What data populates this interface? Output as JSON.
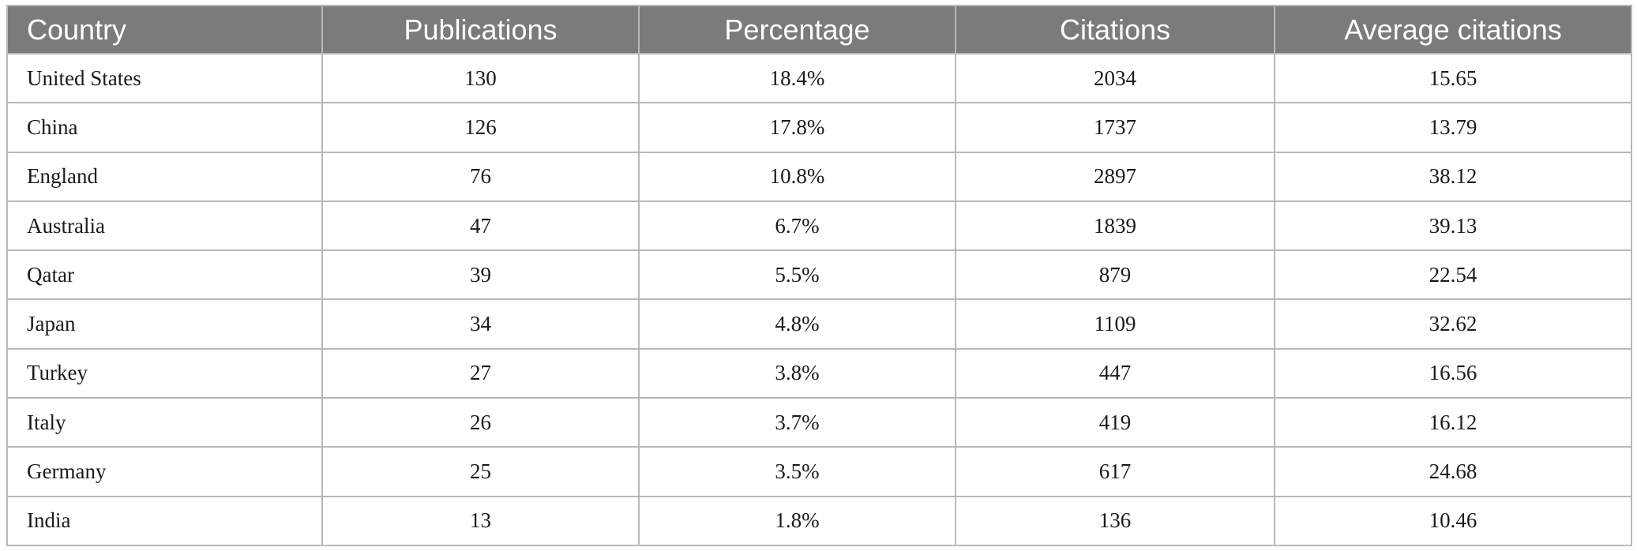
{
  "table": {
    "headers": [
      "Country",
      "Publications",
      "Percentage",
      "Citations",
      "Average citations"
    ],
    "rows": [
      [
        "United States",
        "130",
        "18.4%",
        "2034",
        "15.65"
      ],
      [
        "China",
        "126",
        "17.8%",
        "1737",
        "13.79"
      ],
      [
        "England",
        "76",
        "10.8%",
        "2897",
        "38.12"
      ],
      [
        "Australia",
        "47",
        "6.7%",
        "1839",
        "39.13"
      ],
      [
        "Qatar",
        "39",
        "5.5%",
        "879",
        "22.54"
      ],
      [
        "Japan",
        "34",
        "4.8%",
        "1109",
        "32.62"
      ],
      [
        "Turkey",
        "27",
        "3.8%",
        "447",
        "16.56"
      ],
      [
        "Italy",
        "26",
        "3.7%",
        "419",
        "16.12"
      ],
      [
        "Germany",
        "25",
        "3.5%",
        "617",
        "24.68"
      ],
      [
        "India",
        "13",
        "1.8%",
        "136",
        "10.46"
      ]
    ]
  },
  "colors": {
    "header_background": "#7b7b7b",
    "header_text": "#ffffff",
    "grid_lines": "#b8b8b8"
  }
}
